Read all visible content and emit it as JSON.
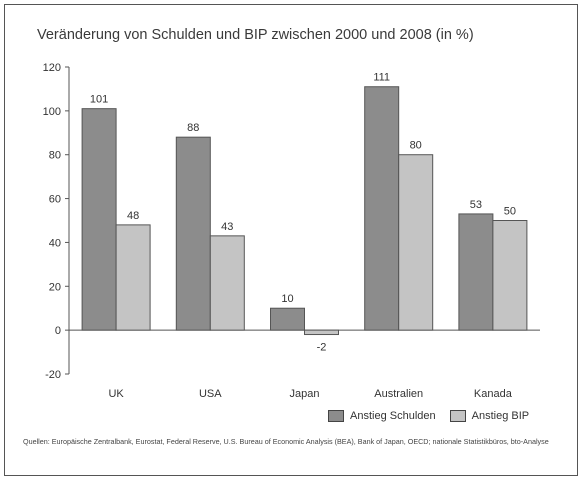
{
  "chart_data": {
    "type": "bar",
    "title": "Veränderung von Schulden und BIP zwischen 2000 und 2008 (in %)",
    "categories": [
      "UK",
      "USA",
      "Japan",
      "Australien",
      "Kanada"
    ],
    "series": [
      {
        "name": "Anstieg Schulden",
        "values": [
          101,
          88,
          10,
          111,
          53
        ],
        "color": "#8c8c8c"
      },
      {
        "name": "Anstieg BIP",
        "values": [
          48,
          43,
          -2,
          80,
          50
        ],
        "color": "#c4c4c4"
      }
    ],
    "ylim": [
      -20,
      120
    ],
    "yticks": [
      -20,
      0,
      20,
      40,
      60,
      80,
      100,
      120
    ],
    "xlabel": "",
    "ylabel": "",
    "grid": false,
    "legend_position": "bottom-right",
    "source": "Quellen: Europäische Zentralbank, Eurostat, Federal Reserve, U.S. Bureau of Economic Analysis (BEA), Bank of Japan, OECD; nationale Statistikbüros, bto-Analyse"
  }
}
